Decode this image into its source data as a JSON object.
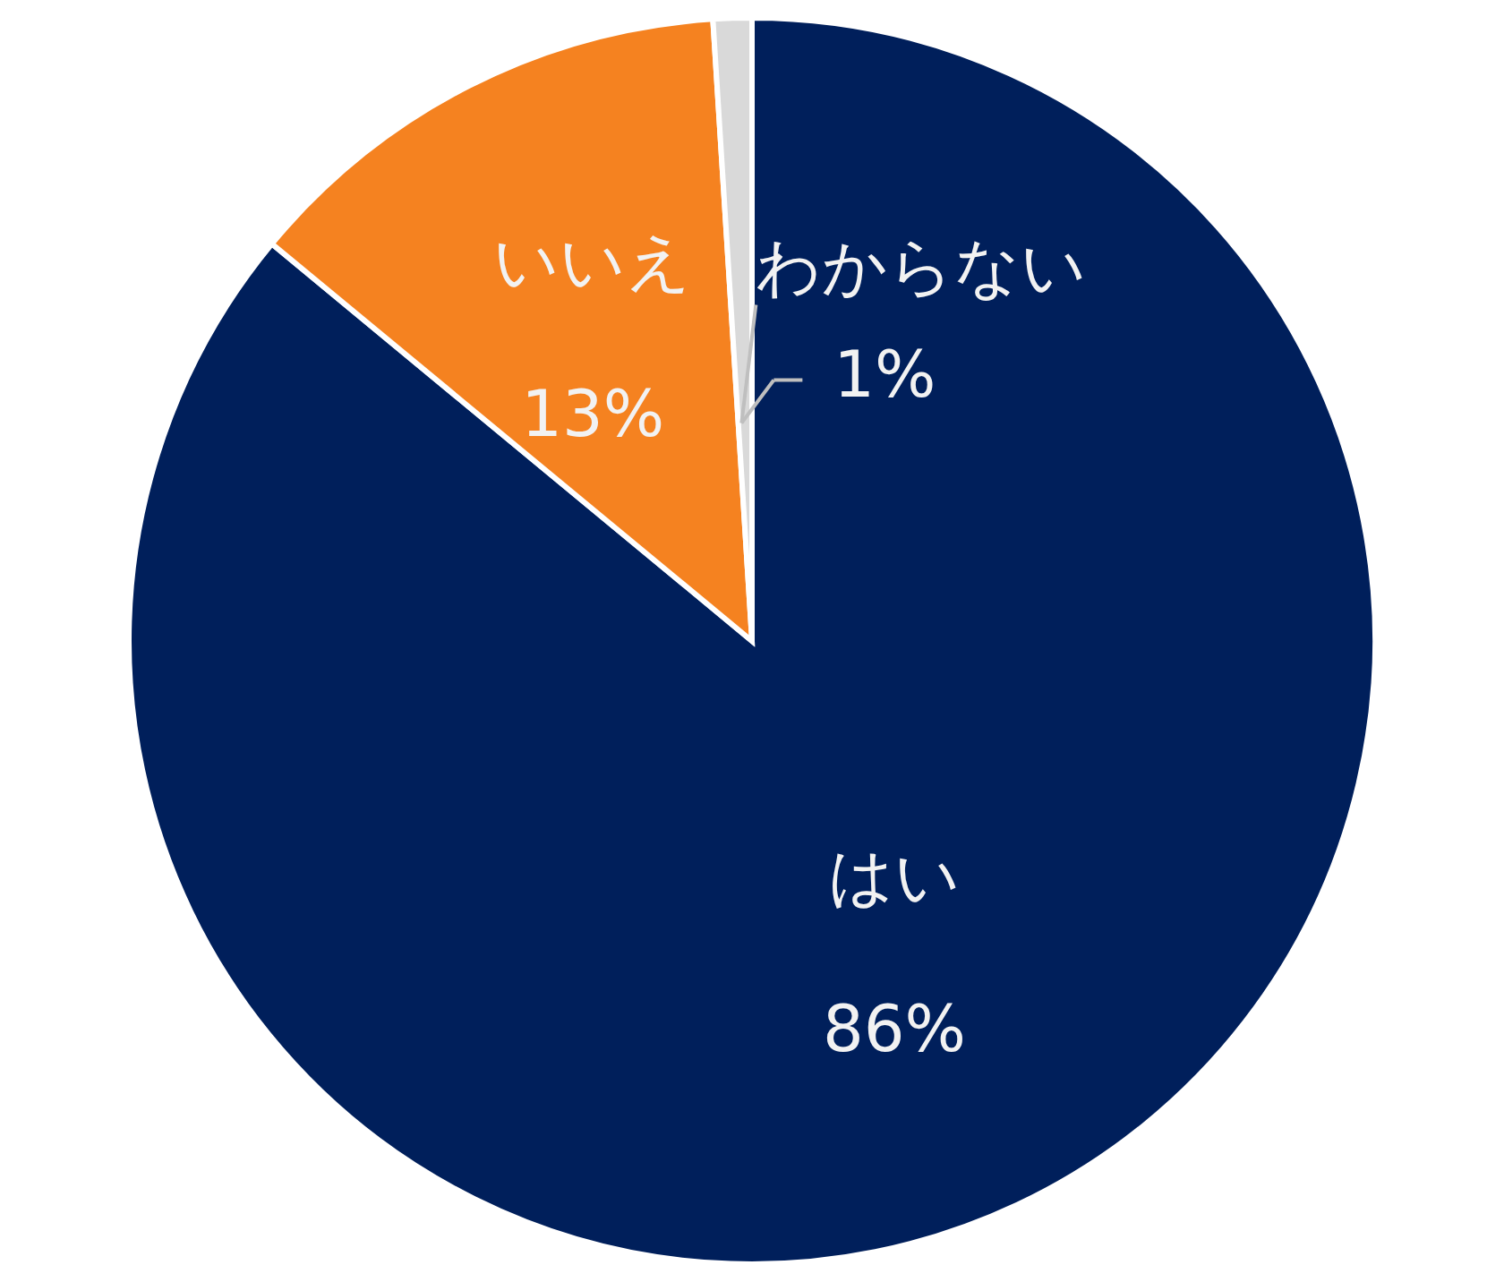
{
  "chart_data": {
    "type": "pie",
    "categories": [
      "はい",
      "いいえ",
      "わからない"
    ],
    "values": [
      86,
      13,
      1
    ],
    "colors": [
      "#001f5b",
      "#f58220",
      "#d9d9d9"
    ],
    "value_labels": [
      "86%",
      "13%",
      "1%"
    ]
  }
}
